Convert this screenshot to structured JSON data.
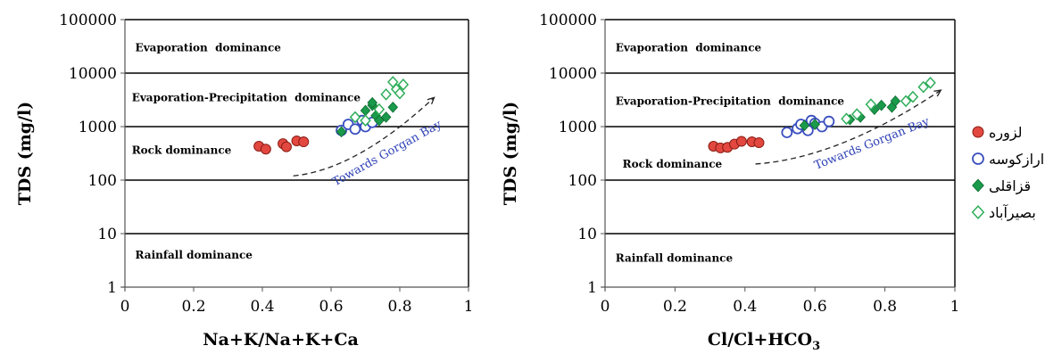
{
  "chart_data": [
    {
      "type": "scatter",
      "xlabel": "Na+K/Na+K+Ca",
      "ylabel": "TDS (mg/l)",
      "xlim": [
        0,
        1
      ],
      "ylim": [
        1,
        100000
      ],
      "y_scale": "log",
      "x_ticks": [
        "0",
        "0.2",
        "0.4",
        "0.6",
        "0.8",
        "1"
      ],
      "y_ticks": [
        "1",
        "10",
        "100",
        "1000",
        "10000",
        "100000"
      ],
      "horizontal_lines": [
        10,
        100,
        1000,
        10000
      ],
      "regions": [
        {
          "label": "Evaporation  dominance",
          "x": 0.03,
          "y": 30000
        },
        {
          "label": "Evaporation-Precipitation  dominance",
          "x": 0.02,
          "y": 3500
        },
        {
          "label": "Rock dominance",
          "x": 0.02,
          "y": 360
        },
        {
          "label": "Rainfall dominance",
          "x": 0.03,
          "y": 4
        }
      ],
      "trend": {
        "label": "Towards Gorgan Bay",
        "from": [
          0.49,
          120
        ],
        "to": [
          0.9,
          3500
        ]
      },
      "series": [
        {
          "name": "لزوره",
          "marker": "circle-filled",
          "points": [
            [
              0.39,
              430
            ],
            [
              0.41,
              380
            ],
            [
              0.46,
              480
            ],
            [
              0.47,
              420
            ],
            [
              0.5,
              540
            ],
            [
              0.52,
              520
            ]
          ]
        },
        {
          "name": "ارازکوسه",
          "marker": "circle-open",
          "points": [
            [
              0.63,
              850
            ],
            [
              0.65,
              1100
            ],
            [
              0.67,
              900
            ],
            [
              0.69,
              1300
            ],
            [
              0.7,
              1000
            ],
            [
              0.72,
              1200
            ]
          ]
        },
        {
          "name": "قزاقلی",
          "marker": "diamond-filled",
          "points": [
            [
              0.63,
              800
            ],
            [
              0.7,
              2000
            ],
            [
              0.72,
              2500
            ],
            [
              0.73,
              1600
            ],
            [
              0.74,
              1300
            ],
            [
              0.76,
              1500
            ],
            [
              0.78,
              2300
            ],
            [
              0.72,
              2800
            ]
          ]
        },
        {
          "name": "بصیرآباد",
          "marker": "diamond-open",
          "points": [
            [
              0.67,
              1500
            ],
            [
              0.7,
              1300
            ],
            [
              0.74,
              2100
            ],
            [
              0.76,
              4000
            ],
            [
              0.78,
              6800
            ],
            [
              0.79,
              5000
            ],
            [
              0.8,
              4200
            ],
            [
              0.81,
              6100
            ]
          ]
        }
      ]
    },
    {
      "type": "scatter",
      "xlabel": "Cl/Cl+HCO3",
      "ylabel": "TDS (mg/l)",
      "xlim": [
        0,
        1
      ],
      "ylim": [
        1,
        100000
      ],
      "y_scale": "log",
      "x_ticks": [
        "0",
        "0.2",
        "0.4",
        "0.6",
        "0.8",
        "1"
      ],
      "y_ticks": [
        "1",
        "10",
        "100",
        "1000",
        "10000",
        "100000"
      ],
      "horizontal_lines": [
        10,
        100,
        1000,
        10000
      ],
      "regions": [
        {
          "label": "Evaporation  dominance",
          "x": 0.03,
          "y": 30000
        },
        {
          "label": "Evaporation-Precipitation  dominance",
          "x": 0.03,
          "y": 3000
        },
        {
          "label": "Rock dominance",
          "x": 0.05,
          "y": 200
        },
        {
          "label": "Rainfall dominance",
          "x": 0.03,
          "y": 3.5
        }
      ],
      "trend": {
        "label": "Towards Gorgan Bay",
        "from": [
          0.43,
          200
        ],
        "to": [
          0.96,
          4800
        ]
      },
      "series": [
        {
          "name": "لزوره",
          "marker": "circle-filled",
          "points": [
            [
              0.31,
              430
            ],
            [
              0.33,
              400
            ],
            [
              0.35,
              410
            ],
            [
              0.37,
              470
            ],
            [
              0.39,
              530
            ],
            [
              0.42,
              520
            ],
            [
              0.44,
              500
            ]
          ]
        },
        {
          "name": "ارازکوسه",
          "marker": "circle-open",
          "points": [
            [
              0.52,
              780
            ],
            [
              0.55,
              920
            ],
            [
              0.57,
              1050
            ],
            [
              0.58,
              850
            ],
            [
              0.59,
              1300
            ],
            [
              0.6,
              1150
            ],
            [
              0.62,
              1000
            ],
            [
              0.64,
              1250
            ],
            [
              0.56,
              1100
            ]
          ]
        },
        {
          "name": "قزاقلی",
          "marker": "diamond-filled",
          "points": [
            [
              0.57,
              1050
            ],
            [
              0.6,
              1100
            ],
            [
              0.7,
              1350
            ],
            [
              0.73,
              1500
            ],
            [
              0.77,
              2100
            ],
            [
              0.79,
              2500
            ],
            [
              0.82,
              2300
            ],
            [
              0.83,
              3000
            ]
          ]
        },
        {
          "name": "بصیرآباد",
          "marker": "diamond-open",
          "points": [
            [
              0.69,
              1400
            ],
            [
              0.72,
              1700
            ],
            [
              0.76,
              2600
            ],
            [
              0.86,
              3000
            ],
            [
              0.88,
              3600
            ],
            [
              0.91,
              5500
            ],
            [
              0.93,
              6600
            ]
          ]
        }
      ]
    }
  ],
  "legend": {
    "placement": "right",
    "items": [
      {
        "label": "لزوره",
        "marker": "circle-filled"
      },
      {
        "label": "ارازکوسه",
        "marker": "circle-open"
      },
      {
        "label": "قزاقلی",
        "marker": "diamond-filled"
      },
      {
        "label": "بصیرآباد",
        "marker": "diamond-open"
      }
    ]
  },
  "colors": {
    "circle_fill": "#e2483f",
    "circle_stroke": "#8a1c15",
    "open_circle": "#3a4fbf",
    "diamond_fill": "#1a9a4a",
    "open_diamond": "#2fae5a",
    "trend_text": "#2c3fb5",
    "grid": "#000000"
  }
}
